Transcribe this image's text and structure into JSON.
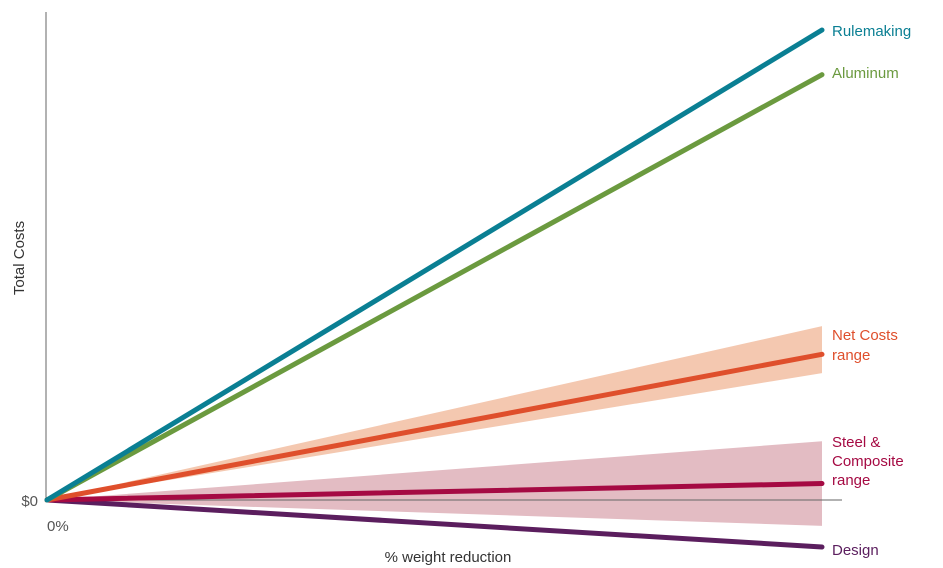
{
  "chart_data": {
    "type": "line",
    "title": "",
    "xlabel": "% weight reduction",
    "ylabel": "Total Costs",
    "x_tick_labels": [
      "0%"
    ],
    "y_tick_labels": [
      "$0"
    ],
    "grid": false,
    "legend": "none (series labelled at line ends, right side)",
    "series": [
      {
        "name": "Rulemaking",
        "color": "#0a7f93",
        "x": [
          0,
          1
        ],
        "y": [
          0,
          100
        ]
      },
      {
        "name": "Aluminum",
        "color": "#6b9a3f",
        "x": [
          0,
          1
        ],
        "y": [
          0,
          90.5
        ]
      },
      {
        "name": "Net Costs range",
        "color": "#df4f2c",
        "band_color": "#f4c8b0",
        "x": [
          0,
          1
        ],
        "y": [
          0,
          31
        ],
        "band": {
          "low": [
            0,
            27
          ],
          "high": [
            0,
            37
          ]
        }
      },
      {
        "name": "Steel & Composite range",
        "color": "#a50a43",
        "band_color": "#e3bcc3",
        "x": [
          0,
          1
        ],
        "y": [
          0,
          3.5
        ],
        "band": {
          "low": [
            0,
            -5.5
          ],
          "high": [
            0,
            12.5
          ]
        }
      },
      {
        "name": "Design",
        "color": "#5b1e5e",
        "x": [
          0,
          1
        ],
        "y": [
          0,
          -10
        ]
      }
    ],
    "labels": {
      "rulemaking": [
        "Rulemaking"
      ],
      "aluminum": [
        "Aluminum"
      ],
      "net_costs": [
        "Net Costs",
        "range"
      ],
      "steel": [
        "Steel &",
        "Composite",
        "range"
      ],
      "design": [
        "Design"
      ]
    }
  }
}
